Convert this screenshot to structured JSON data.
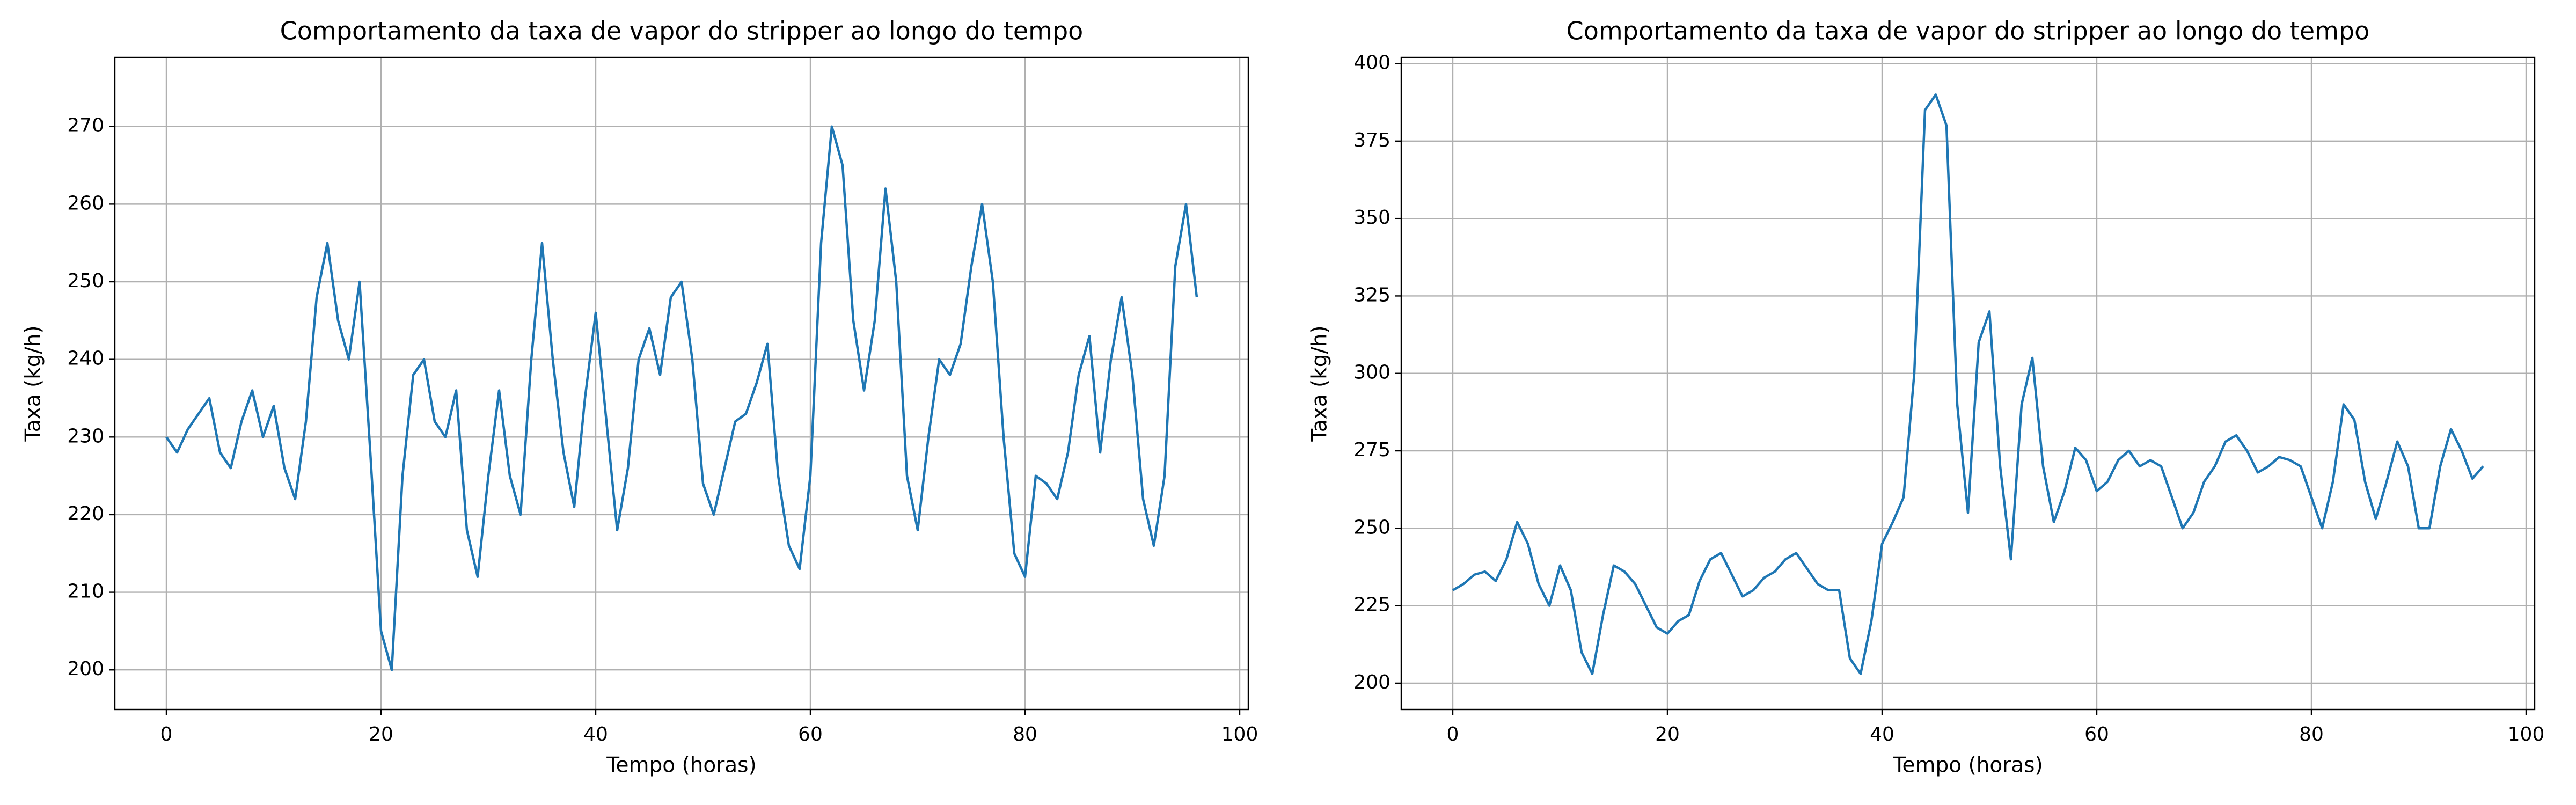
{
  "chart_data": [
    {
      "type": "line",
      "title": "Comportamento da taxa de vapor do stripper ao longo do tempo",
      "xlabel": "Tempo (horas)",
      "ylabel": "Taxa (kg/h)",
      "color": "#1f77b4",
      "grid": true,
      "xlim": [
        -4.8,
        100.8
      ],
      "xticks": [
        0,
        20,
        40,
        60,
        80,
        100
      ],
      "ylim": [
        194.9,
        278.9
      ],
      "yticks": [
        200,
        210,
        220,
        230,
        240,
        250,
        260,
        270
      ],
      "x": [
        0,
        1,
        2,
        3,
        4,
        5,
        6,
        7,
        8,
        9,
        10,
        11,
        12,
        13,
        14,
        15,
        16,
        17,
        18,
        19,
        20,
        21,
        22,
        23,
        24,
        25,
        26,
        27,
        28,
        29,
        30,
        31,
        32,
        33,
        34,
        35,
        36,
        37,
        38,
        39,
        40,
        41,
        42,
        43,
        44,
        45,
        46,
        47,
        48,
        49,
        50,
        51,
        52,
        53,
        54,
        55,
        56,
        57,
        58,
        59,
        60,
        61,
        62,
        63,
        64,
        65,
        66,
        67,
        68,
        69,
        70,
        71,
        72,
        73,
        74,
        75,
        76,
        77,
        78,
        79,
        80,
        81,
        82,
        83,
        84,
        85,
        86,
        87,
        88,
        89,
        90,
        91,
        92,
        93,
        94,
        95,
        96
      ],
      "values": [
        230,
        228,
        231,
        233,
        235,
        228,
        226,
        232,
        236,
        230,
        234,
        226,
        222,
        232,
        248,
        255,
        245,
        240,
        250,
        228,
        205,
        200,
        225,
        238,
        240,
        232,
        230,
        236,
        218,
        212,
        225,
        236,
        225,
        220,
        240,
        255,
        240,
        228,
        221,
        235,
        246,
        232,
        218,
        226,
        240,
        244,
        238,
        248,
        250,
        240,
        224,
        220,
        226,
        232,
        233,
        237,
        242,
        225,
        216,
        213,
        225,
        255,
        270,
        265,
        245,
        236,
        245,
        262,
        250,
        225,
        218,
        230,
        240,
        238,
        242,
        252,
        260,
        250,
        230,
        215,
        212,
        225,
        224,
        222,
        228,
        238,
        243,
        228,
        240,
        248,
        238,
        222,
        216,
        225,
        252,
        260,
        248
      ]
    },
    {
      "type": "line",
      "title": "Comportamento da taxa de vapor do stripper ao longo do tempo",
      "xlabel": "Tempo (horas)",
      "ylabel": "Taxa (kg/h)",
      "color": "#1f77b4",
      "grid": true,
      "xlim": [
        -4.8,
        100.8
      ],
      "xticks": [
        0,
        20,
        40,
        60,
        80,
        100
      ],
      "ylim": [
        191.5,
        402
      ],
      "yticks": [
        200,
        225,
        250,
        275,
        300,
        325,
        350,
        375,
        400
      ],
      "x": [
        0,
        1,
        2,
        3,
        4,
        5,
        6,
        7,
        8,
        9,
        10,
        11,
        12,
        13,
        14,
        15,
        16,
        17,
        18,
        19,
        20,
        21,
        22,
        23,
        24,
        25,
        26,
        27,
        28,
        29,
        30,
        31,
        32,
        33,
        34,
        35,
        36,
        37,
        38,
        39,
        40,
        41,
        42,
        43,
        44,
        45,
        46,
        47,
        48,
        49,
        50,
        51,
        52,
        53,
        54,
        55,
        56,
        57,
        58,
        59,
        60,
        61,
        62,
        63,
        64,
        65,
        66,
        67,
        68,
        69,
        70,
        71,
        72,
        73,
        74,
        75,
        76,
        77,
        78,
        79,
        80,
        81,
        82,
        83,
        84,
        85,
        86,
        87,
        88,
        89,
        90,
        91,
        92,
        93,
        94,
        95,
        96
      ],
      "values": [
        230,
        232,
        235,
        236,
        233,
        240,
        252,
        245,
        232,
        225,
        238,
        230,
        210,
        203,
        222,
        238,
        236,
        232,
        225,
        218,
        216,
        220,
        222,
        233,
        240,
        242,
        235,
        228,
        230,
        234,
        236,
        240,
        242,
        237,
        232,
        230,
        230,
        208,
        203,
        220,
        245,
        252,
        260,
        300,
        385,
        390,
        380,
        290,
        255,
        310,
        320,
        270,
        240,
        290,
        305,
        270,
        252,
        262,
        276,
        272,
        262,
        265,
        272,
        275,
        270,
        272,
        270,
        260,
        250,
        255,
        265,
        270,
        278,
        280,
        275,
        268,
        270,
        273,
        272,
        270,
        260,
        250,
        265,
        290,
        285,
        265,
        253,
        265,
        278,
        270,
        250,
        250,
        270,
        282,
        275,
        266,
        270
      ]
    }
  ]
}
